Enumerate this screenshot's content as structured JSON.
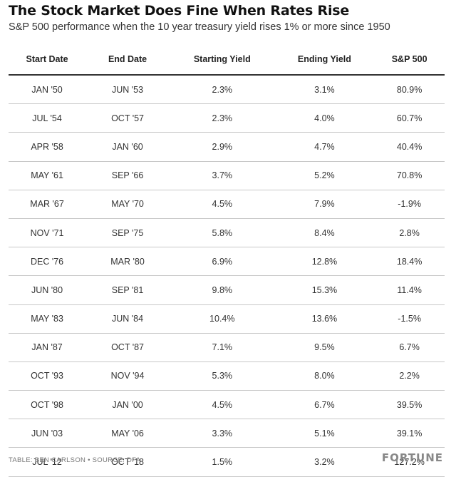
{
  "header": {
    "title": "The Stock Market Does Fine When Rates Rise",
    "subtitle": "S&P 500 performance when the 10 year treasury yield rises 1% or more since 1950"
  },
  "footer": {
    "source": "TABLE: BEN CARLSON • SOURCE: DFA",
    "brand": "FORTUNE"
  },
  "chart_data": {
    "type": "table",
    "title": "The Stock Market Does Fine When Rates Rise",
    "subtitle": "S&P 500 performance when the 10 year treasury yield rises 1% or more since 1950",
    "columns": [
      "Start Date",
      "End Date",
      "Starting Yield",
      "Ending Yield",
      "S&P 500"
    ],
    "rows": [
      [
        "JAN '50",
        "JUN '53",
        "2.3%",
        "3.1%",
        "80.9%"
      ],
      [
        "JUL '54",
        "OCT '57",
        "2.3%",
        "4.0%",
        "60.7%"
      ],
      [
        "APR '58",
        "JAN '60",
        "2.9%",
        "4.7%",
        "40.4%"
      ],
      [
        "MAY '61",
        "SEP '66",
        "3.7%",
        "5.2%",
        "70.8%"
      ],
      [
        "MAR '67",
        "MAY '70",
        "4.5%",
        "7.9%",
        "-1.9%"
      ],
      [
        "NOV '71",
        "SEP '75",
        "5.8%",
        "8.4%",
        "2.8%"
      ],
      [
        "DEC '76",
        "MAR '80",
        "6.9%",
        "12.8%",
        "18.4%"
      ],
      [
        "JUN '80",
        "SEP '81",
        "9.8%",
        "15.3%",
        "11.4%"
      ],
      [
        "MAY '83",
        "JUN '84",
        "10.4%",
        "13.6%",
        "-1.5%"
      ],
      [
        "JAN '87",
        "OCT '87",
        "7.1%",
        "9.5%",
        "6.7%"
      ],
      [
        "OCT '93",
        "NOV '94",
        "5.3%",
        "8.0%",
        "2.2%"
      ],
      [
        "OCT '98",
        "JAN '00",
        "4.5%",
        "6.7%",
        "39.5%"
      ],
      [
        "JUN '03",
        "MAY '06",
        "3.3%",
        "5.1%",
        "39.1%"
      ],
      [
        "JUL '12",
        "OCT '18",
        "1.5%",
        "3.2%",
        "127.2%"
      ]
    ]
  }
}
